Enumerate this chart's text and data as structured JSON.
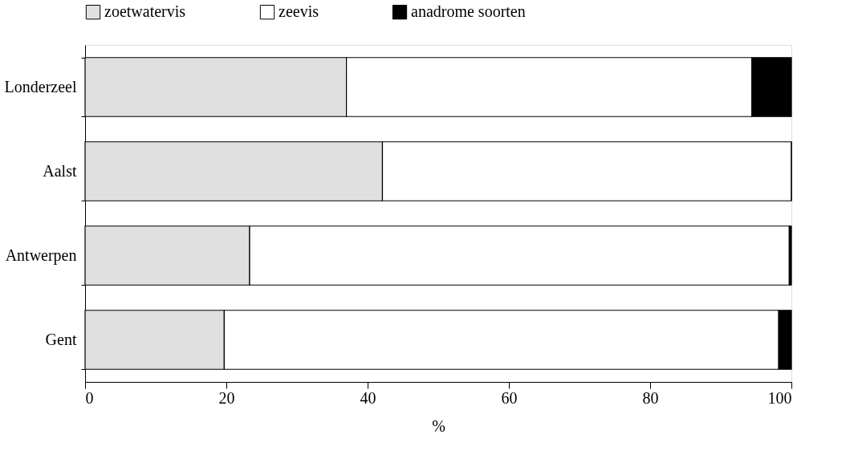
{
  "chart_data": {
    "type": "bar",
    "orientation": "horizontal",
    "stacked": true,
    "xlabel": "%",
    "categories": [
      "Londerzeel",
      "Aalst",
      "Antwerpen",
      "Gent"
    ],
    "series": [
      {
        "name": "zoetwatervis",
        "color": "#e0e0e0",
        "values": [
          37.0,
          42.1,
          23.3,
          19.7
        ]
      },
      {
        "name": "zeevis",
        "color": "#ffffff",
        "values": [
          57.4,
          57.9,
          76.4,
          78.5
        ]
      },
      {
        "name": "anadrome soorten",
        "color": "#000000",
        "values": [
          5.6,
          0,
          0.3,
          1.8
        ]
      }
    ],
    "xlim": [
      0,
      100
    ],
    "xticks": [
      0,
      20,
      40,
      60,
      80,
      100
    ],
    "grid": false,
    "legend": "top"
  }
}
